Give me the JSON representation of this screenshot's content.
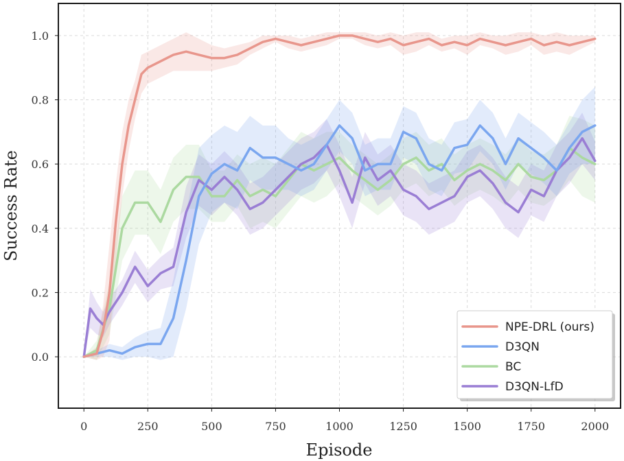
{
  "chart_data": {
    "type": "line",
    "title": "",
    "xlabel": "Episode",
    "ylabel": "Success Rate",
    "xlim": [
      -100,
      2100
    ],
    "ylim": [
      -0.16,
      1.1
    ],
    "xticks": [
      0,
      250,
      500,
      750,
      1000,
      1250,
      1500,
      1750,
      2000
    ],
    "yticks": [
      0.0,
      0.2,
      0.4,
      0.6,
      0.8,
      1.0
    ],
    "xtick_labels": [
      "0",
      "250",
      "500",
      "750",
      "1000",
      "1250",
      "1500",
      "1750",
      "2000"
    ],
    "ytick_labels": [
      "0.0",
      "0.2",
      "0.4",
      "0.6",
      "0.8",
      "1.0"
    ],
    "grid": true,
    "legend_position": "bottom-right",
    "series": [
      {
        "name": "NPE-DRL (ours)",
        "color": "#e8968c",
        "x": [
          0,
          50,
          75,
          100,
          125,
          150,
          175,
          200,
          225,
          250,
          300,
          350,
          400,
          450,
          500,
          550,
          600,
          650,
          700,
          750,
          800,
          850,
          900,
          950,
          1000,
          1050,
          1100,
          1150,
          1200,
          1250,
          1300,
          1350,
          1400,
          1450,
          1500,
          1550,
          1600,
          1650,
          1700,
          1750,
          1800,
          1850,
          1900,
          1950,
          2000
        ],
        "y": [
          0.0,
          0.01,
          0.08,
          0.2,
          0.42,
          0.6,
          0.72,
          0.8,
          0.88,
          0.9,
          0.92,
          0.94,
          0.95,
          0.94,
          0.93,
          0.93,
          0.94,
          0.96,
          0.98,
          0.99,
          0.98,
          0.97,
          0.98,
          0.99,
          1.0,
          1.0,
          0.99,
          0.98,
          0.99,
          0.97,
          0.98,
          0.99,
          0.97,
          0.98,
          0.97,
          0.99,
          0.98,
          0.97,
          0.98,
          0.99,
          0.97,
          0.98,
          0.97,
          0.98,
          0.99
        ],
        "band": [
          0.0,
          0.02,
          0.08,
          0.15,
          0.12,
          0.1,
          0.08,
          0.06,
          0.06,
          0.05,
          0.05,
          0.05,
          0.06,
          0.05,
          0.04,
          0.03,
          0.03,
          0.02,
          0.02,
          0.01,
          0.02,
          0.02,
          0.02,
          0.02,
          0.01,
          0.01,
          0.02,
          0.02,
          0.02,
          0.03,
          0.03,
          0.02,
          0.02,
          0.02,
          0.03,
          0.02,
          0.02,
          0.03,
          0.03,
          0.02,
          0.03,
          0.03,
          0.03,
          0.02,
          0.01
        ]
      },
      {
        "name": "D3QN",
        "color": "#7aa6ef",
        "x": [
          0,
          50,
          100,
          150,
          200,
          250,
          300,
          350,
          400,
          450,
          500,
          550,
          600,
          650,
          700,
          750,
          800,
          850,
          900,
          950,
          1000,
          1050,
          1100,
          1150,
          1200,
          1250,
          1300,
          1350,
          1400,
          1450,
          1500,
          1550,
          1600,
          1650,
          1700,
          1750,
          1800,
          1850,
          1900,
          1950,
          2000
        ],
        "y": [
          0.0,
          0.01,
          0.02,
          0.01,
          0.03,
          0.04,
          0.04,
          0.12,
          0.3,
          0.5,
          0.57,
          0.6,
          0.58,
          0.65,
          0.62,
          0.62,
          0.6,
          0.58,
          0.6,
          0.66,
          0.72,
          0.68,
          0.58,
          0.6,
          0.6,
          0.7,
          0.68,
          0.6,
          0.58,
          0.65,
          0.66,
          0.72,
          0.68,
          0.6,
          0.68,
          0.65,
          0.62,
          0.58,
          0.65,
          0.7,
          0.72
        ],
        "band": [
          0.0,
          0.01,
          0.02,
          0.02,
          0.03,
          0.04,
          0.05,
          0.12,
          0.15,
          0.15,
          0.12,
          0.12,
          0.12,
          0.1,
          0.1,
          0.1,
          0.08,
          0.08,
          0.08,
          0.08,
          0.08,
          0.08,
          0.08,
          0.08,
          0.08,
          0.08,
          0.08,
          0.08,
          0.08,
          0.08,
          0.08,
          0.08,
          0.08,
          0.08,
          0.08,
          0.08,
          0.08,
          0.08,
          0.08,
          0.1,
          0.12
        ]
      },
      {
        "name": "BC",
        "color": "#abd9a0",
        "x": [
          0,
          50,
          100,
          150,
          200,
          250,
          300,
          350,
          400,
          450,
          500,
          550,
          600,
          650,
          700,
          750,
          800,
          850,
          900,
          950,
          1000,
          1050,
          1100,
          1150,
          1200,
          1250,
          1300,
          1350,
          1400,
          1450,
          1500,
          1550,
          1600,
          1650,
          1700,
          1750,
          1800,
          1850,
          1900,
          1950,
          2000
        ],
        "y": [
          0.0,
          0.02,
          0.15,
          0.4,
          0.48,
          0.48,
          0.42,
          0.52,
          0.56,
          0.56,
          0.5,
          0.5,
          0.55,
          0.5,
          0.52,
          0.5,
          0.55,
          0.6,
          0.58,
          0.6,
          0.62,
          0.58,
          0.55,
          0.52,
          0.55,
          0.6,
          0.62,
          0.58,
          0.6,
          0.55,
          0.58,
          0.6,
          0.58,
          0.55,
          0.6,
          0.56,
          0.55,
          0.58,
          0.65,
          0.62,
          0.6
        ],
        "band": [
          0.0,
          0.03,
          0.08,
          0.1,
          0.1,
          0.1,
          0.1,
          0.1,
          0.1,
          0.1,
          0.08,
          0.08,
          0.08,
          0.1,
          0.1,
          0.1,
          0.1,
          0.1,
          0.1,
          0.1,
          0.08,
          0.08,
          0.08,
          0.08,
          0.08,
          0.08,
          0.08,
          0.08,
          0.08,
          0.08,
          0.08,
          0.08,
          0.08,
          0.08,
          0.08,
          0.08,
          0.08,
          0.08,
          0.1,
          0.12,
          0.12
        ]
      },
      {
        "name": "D3QN-LfD",
        "color": "#9a7ed4",
        "x": [
          0,
          25,
          50,
          75,
          100,
          150,
          200,
          250,
          300,
          350,
          400,
          450,
          500,
          550,
          600,
          650,
          700,
          750,
          800,
          850,
          900,
          950,
          1000,
          1050,
          1100,
          1150,
          1200,
          1250,
          1300,
          1350,
          1400,
          1450,
          1500,
          1550,
          1600,
          1650,
          1700,
          1750,
          1800,
          1850,
          1900,
          1950,
          2000
        ],
        "y": [
          0.0,
          0.15,
          0.12,
          0.1,
          0.14,
          0.2,
          0.28,
          0.22,
          0.26,
          0.28,
          0.45,
          0.55,
          0.52,
          0.56,
          0.52,
          0.46,
          0.48,
          0.52,
          0.56,
          0.6,
          0.62,
          0.66,
          0.58,
          0.48,
          0.62,
          0.55,
          0.58,
          0.52,
          0.5,
          0.46,
          0.48,
          0.5,
          0.56,
          0.58,
          0.54,
          0.48,
          0.45,
          0.52,
          0.5,
          0.58,
          0.62,
          0.68,
          0.61
        ],
        "band": [
          0.0,
          0.06,
          0.05,
          0.04,
          0.04,
          0.04,
          0.05,
          0.05,
          0.05,
          0.06,
          0.08,
          0.08,
          0.08,
          0.08,
          0.08,
          0.08,
          0.08,
          0.08,
          0.08,
          0.08,
          0.08,
          0.08,
          0.08,
          0.08,
          0.08,
          0.08,
          0.08,
          0.08,
          0.08,
          0.08,
          0.08,
          0.08,
          0.08,
          0.08,
          0.08,
          0.08,
          0.08,
          0.08,
          0.08,
          0.08,
          0.08,
          0.08,
          0.06
        ]
      }
    ]
  }
}
